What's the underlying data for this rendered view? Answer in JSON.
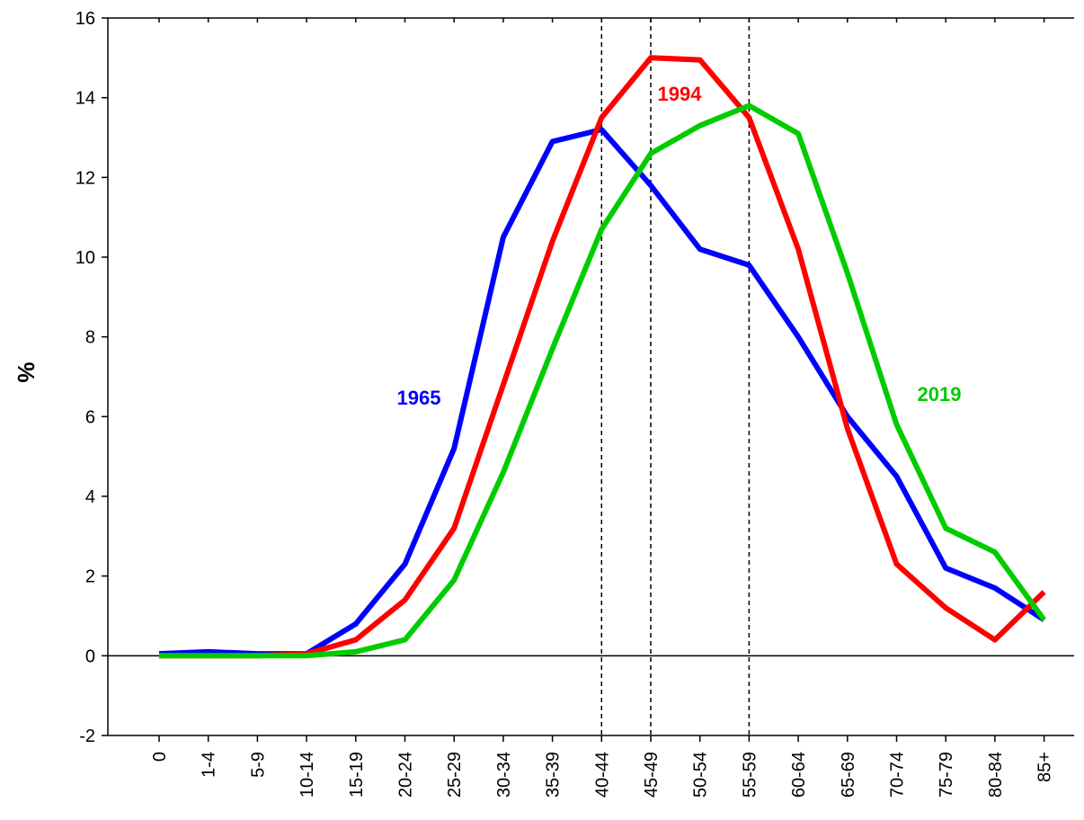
{
  "chart_data": {
    "type": "line",
    "title": "",
    "xlabel": "",
    "ylabel": "%",
    "ylim": [
      -2,
      16
    ],
    "y_ticks": [
      -2,
      0,
      2,
      4,
      6,
      8,
      10,
      12,
      14,
      16
    ],
    "grid": false,
    "legend": "inline labels",
    "categories": [
      "0",
      "1-4",
      "5-9",
      "10-14",
      "15-19",
      "20-24",
      "25-29",
      "30-34",
      "35-39",
      "40-44",
      "45-49",
      "50-54",
      "55-59",
      "60-64",
      "65-69",
      "70-74",
      "75-79",
      "80-84",
      "85+"
    ],
    "series": [
      {
        "name": "1965",
        "color": "#0000ff",
        "values": [
          0.05,
          0.1,
          0.05,
          0.05,
          0.8,
          2.3,
          5.2,
          10.5,
          12.9,
          13.2,
          11.8,
          10.2,
          9.8,
          8.0,
          6.0,
          4.5,
          2.2,
          1.7,
          0.9
        ]
      },
      {
        "name": "1994",
        "color": "#ff0000",
        "values": [
          0.0,
          0.0,
          0.0,
          0.05,
          0.4,
          1.4,
          3.2,
          6.8,
          10.4,
          13.5,
          15.0,
          14.95,
          13.5,
          10.2,
          5.7,
          2.3,
          1.2,
          0.4,
          1.6
        ]
      },
      {
        "name": "2019",
        "color": "#00cc00",
        "values": [
          0.0,
          0.0,
          0.0,
          0.0,
          0.1,
          0.4,
          1.9,
          4.6,
          7.7,
          10.7,
          12.6,
          13.3,
          13.8,
          13.1,
          9.6,
          5.8,
          3.2,
          2.6,
          0.9
        ]
      }
    ],
    "reference_lines": [
      "40-44",
      "45-49",
      "55-59"
    ]
  }
}
